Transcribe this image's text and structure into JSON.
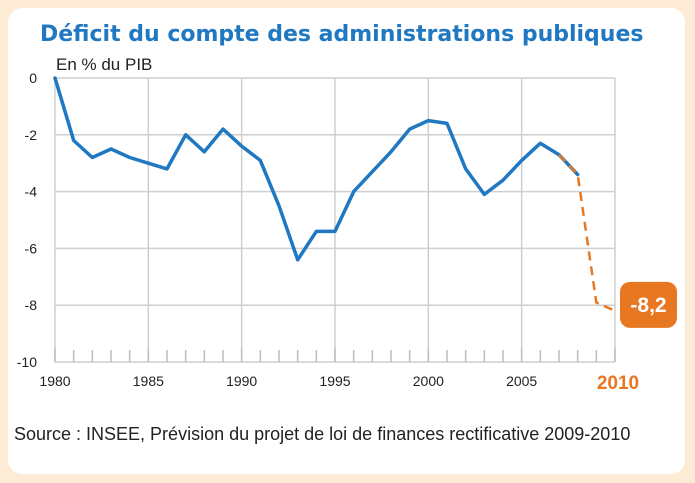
{
  "title": "Déficit du compte des administrations publiques",
  "unit_label": "En % du PIB",
  "source": "Source : INSEE, Prévision du projet de loi de finances rectificative 2009-2010",
  "colors": {
    "line": "#1f78c1",
    "forecast": "#e87722",
    "grid": "#cfcfcf",
    "background": "#fdebd6"
  },
  "chart_data": {
    "type": "line",
    "title": "Déficit du compte des administrations publiques",
    "ylabel": "En % du PIB",
    "xlabel": "",
    "ylim": [
      -10,
      0
    ],
    "xlim": [
      1980,
      2010
    ],
    "grid": true,
    "y_ticks": [
      0,
      -2,
      -4,
      -6,
      -8,
      -10
    ],
    "x_tick_labels": [
      "1980",
      "1985",
      "1990",
      "1995",
      "2000",
      "2005"
    ],
    "x_tick_highlight": "2010",
    "series": [
      {
        "style": "solid",
        "x": [
          1980,
          1981,
          1982,
          1983,
          1984,
          1985,
          1986,
          1987,
          1988,
          1989,
          1990,
          1991,
          1992,
          1993,
          1994,
          1995,
          1996,
          1997,
          1998,
          1999,
          2000,
          2001,
          2002,
          2003,
          2004,
          2005,
          2006,
          2007,
          2008
        ],
        "y": [
          0.0,
          -2.2,
          -2.8,
          -2.5,
          -2.8,
          -3.0,
          -3.2,
          -2.0,
          -2.6,
          -1.8,
          -2.4,
          -2.9,
          -4.5,
          -6.4,
          -5.4,
          -5.4,
          -4.0,
          -3.3,
          -2.6,
          -1.8,
          -1.5,
          -1.6,
          -3.2,
          -4.1,
          -3.6,
          -2.9,
          -2.3,
          -2.7,
          -3.4
        ]
      },
      {
        "style": "dashed",
        "x": [
          2007,
          2008,
          2009,
          2010
        ],
        "y": [
          -2.7,
          -3.4,
          -7.9,
          -8.2
        ]
      }
    ],
    "annotation": {
      "text": "-8,2",
      "x": 2010,
      "y": -8.2
    }
  }
}
